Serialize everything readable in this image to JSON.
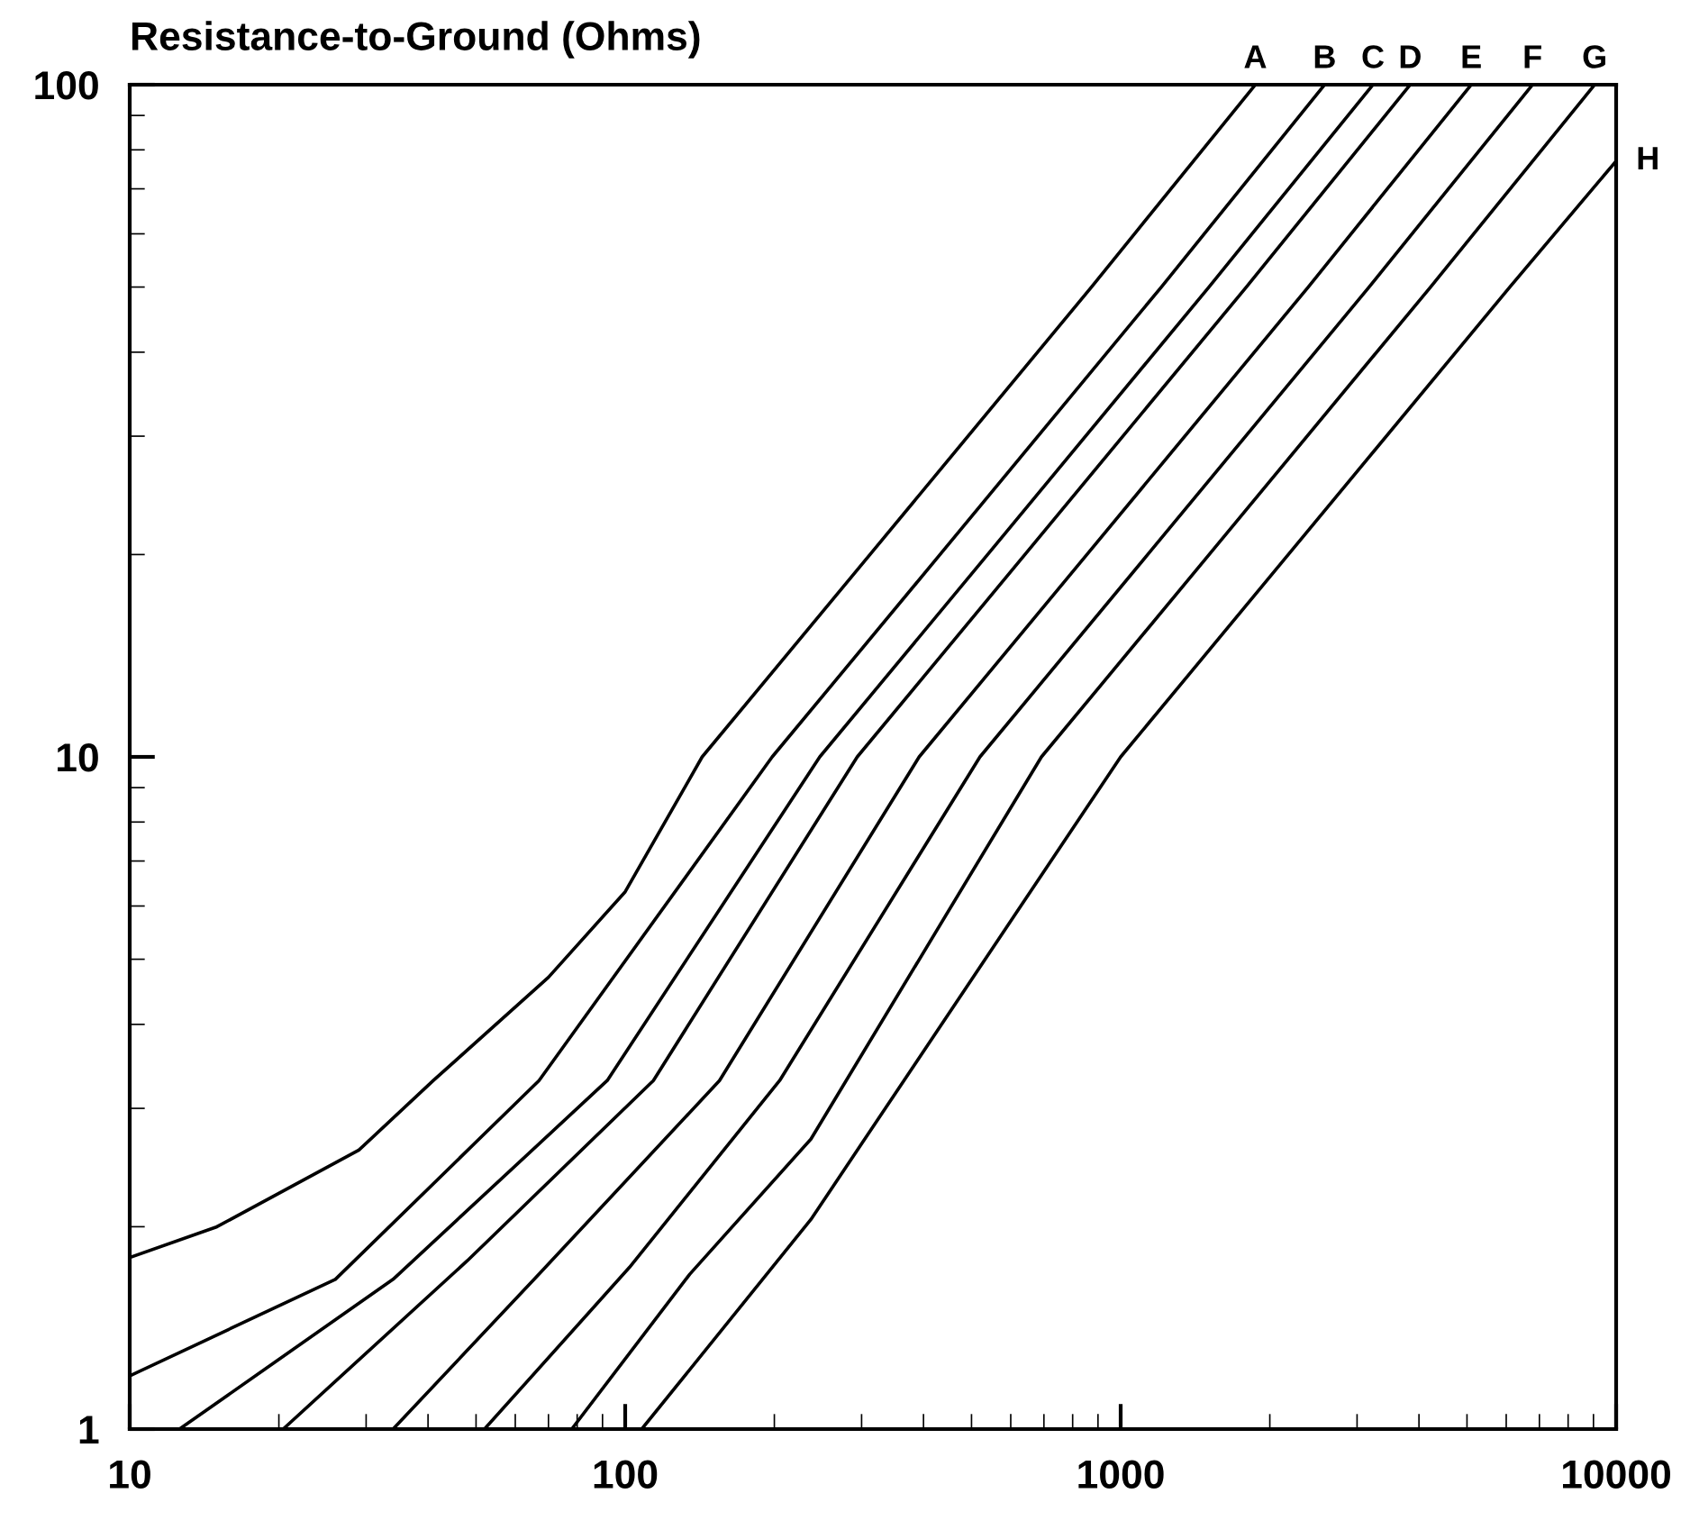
{
  "chart_data": {
    "type": "line",
    "title": "Resistance-to-Ground (Ohms)",
    "log": "xy",
    "xlim": [
      10,
      10000
    ],
    "ylim": [
      1,
      100
    ],
    "xticks": [
      10,
      100,
      1000,
      10000
    ],
    "yticks": [
      1,
      10,
      100
    ],
    "grid": false,
    "legend": false,
    "marker": "none",
    "line_style": "solid",
    "series": [
      {
        "name": "A",
        "color": "#000000",
        "x": [
          10,
          15,
          29,
          41,
          70,
          100,
          143,
          312,
          873,
          1870
        ],
        "values": [
          1.8,
          2.0,
          2.6,
          3.3,
          4.7,
          6.3,
          10,
          20,
          50,
          100
        ]
      },
      {
        "name": "B",
        "color": "#000000",
        "x": [
          10,
          26,
          67,
          198,
          432,
          1208,
          2580
        ],
        "values": [
          1.2,
          1.67,
          3.3,
          10,
          20,
          50,
          100
        ]
      },
      {
        "name": "C",
        "color": "#000000",
        "x": [
          12.6,
          34,
          92,
          247,
          539,
          1507,
          3230
        ],
        "values": [
          1,
          1.67,
          3.3,
          10,
          20,
          50,
          100
        ]
      },
      {
        "name": "D",
        "color": "#000000",
        "x": [
          20.4,
          48,
          114,
          294,
          641,
          1793,
          3840
        ],
        "values": [
          1,
          1.78,
          3.3,
          10,
          20,
          50,
          100
        ]
      },
      {
        "name": "E",
        "color": "#000000",
        "x": [
          34,
          67,
          155,
          392,
          855,
          2391,
          5100
        ],
        "values": [
          1,
          1.7,
          3.3,
          10,
          20,
          50,
          100
        ]
      },
      {
        "name": "F",
        "color": "#000000",
        "x": [
          52,
          102,
          205,
          520,
          1134,
          3172,
          6780
        ],
        "values": [
          1,
          1.74,
          3.3,
          10,
          20,
          50,
          100
        ]
      },
      {
        "name": "G",
        "color": "#000000",
        "x": [
          78,
          135,
          237,
          692,
          1509,
          4221,
          9050
        ],
        "values": [
          1,
          1.7,
          2.7,
          10,
          20,
          50,
          100
        ]
      },
      {
        "name": "H",
        "color": "#000000",
        "x": [
          108,
          237,
          1000,
          2180,
          6100,
          10000
        ],
        "values": [
          1,
          2.05,
          10,
          20,
          50,
          77
        ]
      }
    ]
  }
}
